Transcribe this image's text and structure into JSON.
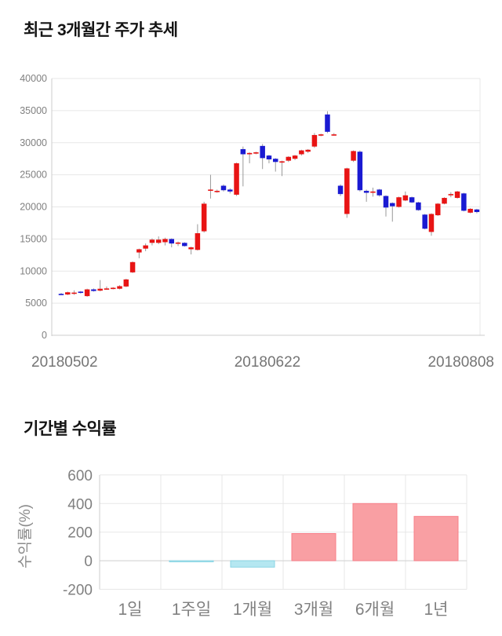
{
  "charts_meta": {
    "axis_text_color": "#808080",
    "grid_color": "#e7e7e7",
    "axis_line_color": "#cccccc",
    "background": "#ffffff"
  },
  "chart_data": [
    {
      "type": "candlestick",
      "title": "최근 3개월간 주가 추세",
      "x_tick_labels": [
        "20180502",
        "20180622",
        "20180808"
      ],
      "y_ticks": [
        0,
        5000,
        10000,
        15000,
        20000,
        25000,
        30000,
        35000,
        40000
      ],
      "ylim": [
        0,
        40000
      ],
      "grid": "horizontal-only",
      "legend": "none",
      "up_color": "#e81414",
      "down_color": "#1a1ad2",
      "wick_color": "#999999",
      "candles_ohlc": [
        [
          6450,
          6600,
          6300,
          6400
        ],
        [
          6350,
          6800,
          6250,
          6700
        ],
        [
          6600,
          7000,
          6300,
          6650
        ],
        [
          6800,
          6900,
          6500,
          6600
        ],
        [
          6100,
          7250,
          6000,
          7150
        ],
        [
          7150,
          7300,
          6800,
          6900
        ],
        [
          6950,
          8600,
          6850,
          7250
        ],
        [
          7200,
          7600,
          7100,
          7300
        ],
        [
          7250,
          7500,
          7150,
          7400
        ],
        [
          7250,
          7800,
          7150,
          7650
        ],
        [
          7600,
          8800,
          7500,
          8700
        ],
        [
          9800,
          11500,
          9700,
          11400
        ],
        [
          12900,
          13500,
          12000,
          13400
        ],
        [
          13500,
          14300,
          13100,
          14000
        ],
        [
          14400,
          15100,
          14000,
          14900
        ],
        [
          14400,
          15400,
          14200,
          14900
        ],
        [
          14500,
          15200,
          14000,
          15000
        ],
        [
          15000,
          15100,
          13700,
          14300
        ],
        [
          14350,
          14600,
          13900,
          14450
        ],
        [
          14400,
          14500,
          13800,
          13900
        ],
        [
          13400,
          13800,
          12600,
          13700
        ],
        [
          13300,
          17300,
          13200,
          15900
        ],
        [
          16200,
          20800,
          16000,
          20500
        ],
        [
          22600,
          25000,
          21300,
          22700
        ],
        [
          22400,
          22700,
          22200,
          22500
        ],
        [
          23300,
          23500,
          22400,
          22600
        ],
        [
          22700,
          22900,
          22100,
          22400
        ],
        [
          21900,
          26900,
          21700,
          26800
        ],
        [
          29000,
          29400,
          23200,
          28200
        ],
        [
          28200,
          28500,
          26800,
          28400
        ],
        [
          28400,
          28600,
          28200,
          28500
        ],
        [
          29500,
          29800,
          25900,
          27600
        ],
        [
          28000,
          28100,
          26800,
          27400
        ],
        [
          27500,
          27600,
          25500,
          27000
        ],
        [
          27000,
          27200,
          24800,
          27100
        ],
        [
          27200,
          27900,
          27000,
          27800
        ],
        [
          27500,
          28100,
          27300,
          28000
        ],
        [
          28200,
          28900,
          28000,
          28800
        ],
        [
          28600,
          29000,
          28400,
          28900
        ],
        [
          29400,
          31500,
          29200,
          31200
        ],
        [
          31100,
          31400,
          31000,
          31300
        ],
        [
          34400,
          34900,
          31500,
          31700
        ],
        [
          31200,
          31500,
          31100,
          31300
        ],
        [
          23300,
          23500,
          21700,
          22000
        ],
        [
          18900,
          26100,
          18300,
          26000
        ],
        [
          27200,
          28800,
          27000,
          28700
        ],
        [
          28600,
          28800,
          22400,
          22600
        ],
        [
          22500,
          22700,
          20800,
          22200
        ],
        [
          22300,
          23000,
          21600,
          22400
        ],
        [
          22700,
          22800,
          21600,
          21800
        ],
        [
          21700,
          21800,
          18500,
          19900
        ],
        [
          20600,
          20700,
          17700,
          20100
        ],
        [
          20000,
          21600,
          19900,
          21500
        ],
        [
          21000,
          22400,
          20900,
          21800
        ],
        [
          21500,
          21600,
          20600,
          20700
        ],
        [
          20700,
          20800,
          19400,
          19500
        ],
        [
          18800,
          18900,
          16500,
          16600
        ],
        [
          16100,
          19000,
          15500,
          18900
        ],
        [
          18700,
          20600,
          18600,
          20500
        ],
        [
          20500,
          21500,
          20400,
          21400
        ],
        [
          21900,
          22300,
          21500,
          22000
        ],
        [
          21400,
          22500,
          21300,
          22400
        ],
        [
          22100,
          22200,
          19300,
          19400
        ],
        [
          19100,
          19800,
          19000,
          19700
        ],
        [
          19600,
          19700,
          19000,
          19200
        ]
      ]
    },
    {
      "type": "bar",
      "title": "기간별 수익률",
      "categories": [
        "1일",
        "1주일",
        "1개월",
        "3개월",
        "6개월",
        "1년"
      ],
      "values": [
        0,
        -8,
        -45,
        190,
        400,
        310
      ],
      "ylabel": "수익률(%)",
      "y_ticks": [
        600,
        400,
        200,
        0,
        -200
      ],
      "ylim": [
        -200,
        600
      ],
      "grid": "both",
      "legend": "none",
      "positive_color": "#f99fa3",
      "positive_border": "#f8808a",
      "negative_color": "#b5e7f1",
      "negative_border": "#8ad4e4"
    }
  ]
}
